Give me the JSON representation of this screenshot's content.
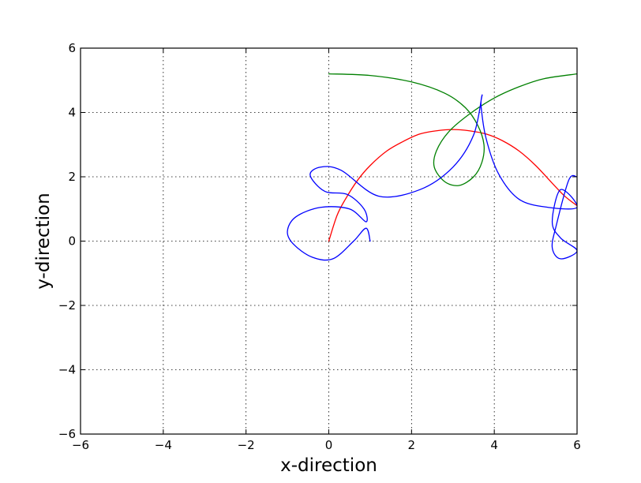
{
  "chart_data": {
    "type": "line",
    "title": "",
    "xlabel": "x-direction",
    "ylabel": "y-direction",
    "xlim": [
      -6,
      6
    ],
    "ylim": [
      -6,
      6
    ],
    "xticks": [
      -6,
      -4,
      -2,
      0,
      2,
      4,
      6
    ],
    "yticks": [
      -6,
      -4,
      -2,
      0,
      2,
      4,
      6
    ],
    "xtick_labels": [
      "−6",
      "−4",
      "−2",
      "0",
      "2",
      "4",
      "6"
    ],
    "ytick_labels": [
      "−6",
      "−4",
      "−2",
      "0",
      "2",
      "4",
      "6"
    ],
    "grid": true,
    "legend": false,
    "series": [
      {
        "color": "#ff0000",
        "x": [
          0.0,
          0.2,
          0.4,
          0.7,
          1.0,
          1.4,
          1.8,
          2.2,
          2.6,
          3.0,
          3.4,
          3.8,
          4.2,
          4.6,
          5.0,
          5.4,
          5.7,
          6.0
        ],
        "y": [
          0.0,
          0.8,
          1.3,
          1.9,
          2.35,
          2.8,
          3.1,
          3.33,
          3.43,
          3.47,
          3.43,
          3.33,
          3.12,
          2.8,
          2.35,
          1.8,
          1.4,
          1.1
        ]
      },
      {
        "color": "#008000",
        "x": [
          0.0,
          1.0,
          2.0,
          2.8,
          3.3,
          3.6,
          3.75,
          3.7,
          3.5,
          3.15,
          2.8,
          2.55,
          2.6,
          2.9,
          3.4,
          4.0,
          4.6,
          5.2,
          6.0
        ],
        "y": [
          5.2,
          5.15,
          4.95,
          4.6,
          4.15,
          3.6,
          3.0,
          2.45,
          2.0,
          1.73,
          1.85,
          2.3,
          2.8,
          3.4,
          3.95,
          4.45,
          4.8,
          5.05,
          5.2
        ],
        "x_order": "as-is"
      },
      {
        "color": "#0000ff",
        "x": [
          1.0,
          0.9,
          0.6,
          0.1,
          -0.4,
          -0.85,
          -1.0,
          -0.8,
          -0.2,
          0.5,
          0.9,
          0.85,
          0.45,
          -0.1,
          -0.45,
          -0.2,
          0.3,
          1.2,
          2.2,
          3.0,
          3.5,
          3.7,
          3.68,
          3.8,
          4.1,
          4.6,
          5.3,
          6.0,
          5.6,
          5.4,
          5.6,
          6.0,
          5.6,
          5.4,
          5.5,
          5.8,
          6.0
        ],
        "y": [
          0.0,
          0.4,
          0.0,
          -0.55,
          -0.5,
          -0.1,
          0.3,
          0.75,
          1.05,
          1.0,
          0.6,
          1.0,
          1.45,
          1.55,
          2.05,
          2.3,
          2.2,
          1.4,
          1.6,
          2.3,
          3.3,
          4.5,
          4.2,
          3.2,
          2.1,
          1.3,
          1.05,
          1.05,
          1.6,
          0.6,
          0.1,
          -0.3,
          -0.55,
          -0.2,
          0.5,
          1.9,
          2.0
        ]
      }
    ]
  }
}
